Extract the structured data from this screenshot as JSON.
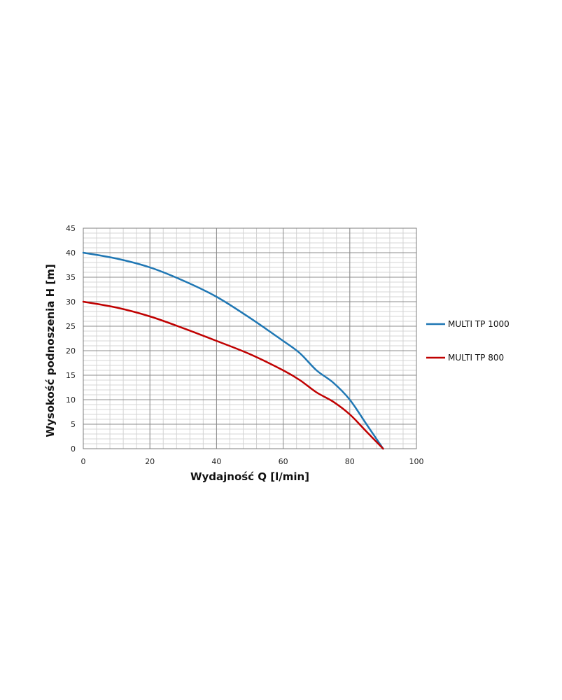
{
  "chart_data": {
    "type": "line",
    "title": "",
    "xlabel": "Wydajność Q [l/min]",
    "ylabel": "Wysokość podnoszenia H [m]",
    "xlim": [
      0,
      100
    ],
    "ylim": [
      0,
      45
    ],
    "xticks": [
      0,
      20,
      40,
      60,
      80,
      100
    ],
    "yticks": [
      0,
      5,
      10,
      15,
      20,
      25,
      30,
      35,
      40,
      45
    ],
    "grid": true,
    "legend_position": "right",
    "series": [
      {
        "name": "MULTI TP 1000",
        "color": "#1f77b4",
        "x": [
          0,
          10,
          20,
          30,
          40,
          50,
          60,
          65,
          70,
          75,
          80,
          85,
          90
        ],
        "y": [
          40,
          38.8,
          37,
          34.3,
          31,
          26.7,
          22,
          19.5,
          16,
          13.5,
          10,
          5,
          0
        ]
      },
      {
        "name": "MULTI TP 800",
        "color": "#c00000",
        "x": [
          0,
          10,
          20,
          30,
          40,
          50,
          60,
          65,
          70,
          75,
          80,
          85,
          90
        ],
        "y": [
          30,
          28.8,
          27,
          24.6,
          22,
          19.3,
          16,
          14,
          11.5,
          9.6,
          7,
          3.5,
          0
        ]
      }
    ]
  }
}
